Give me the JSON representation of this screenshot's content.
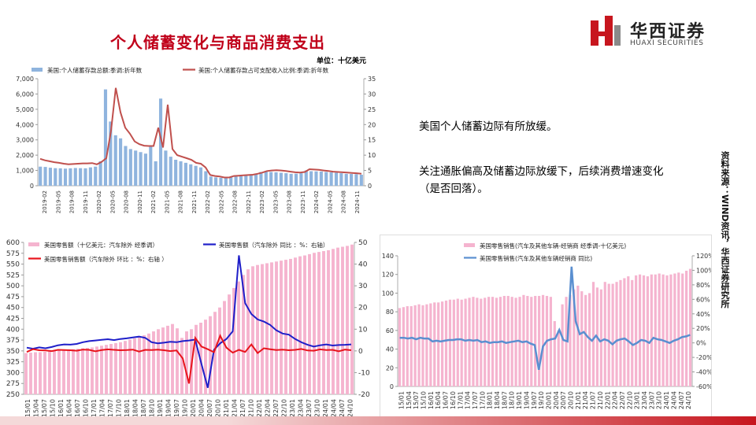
{
  "title": "个人储蓄变化与商品消费支出",
  "logo": {
    "cn": "华西证券",
    "en": "HUAXI SECURITIES",
    "mark_colors": [
      "#c7161e",
      "#8a8a8a"
    ]
  },
  "notes": [
    "美国个人储蓄边际有所放缓。",
    "关注通胀偏高及储蓄边际放缓下，后续消费增速变化（是否回落）。"
  ],
  "source": "资料来源：WIND资讯，华西证券研究所",
  "colors": {
    "accent_red": "#c0001a",
    "bar_blue": "#8fb4de",
    "line_red": "#c0504d",
    "retail_pink": "#f5b4cf",
    "retail_line_red": "#e8141c",
    "retail_line_blue": "#1f1fc9",
    "auto_line_blue": "#5a8fd0"
  },
  "chart_data": [
    {
      "type": "bar",
      "id": "savings",
      "unit": "单位：十亿美元",
      "legend": [
        "美国:个人储蓄存款总额:季调:折年数",
        "美国:个人储蓄存款占可支配收入比例:季调:折年数"
      ],
      "legend_placement": "top",
      "y_left": {
        "lim": [
          0,
          7000
        ],
        "ticks": [
          "0",
          "1,000",
          "2,000",
          "3,000",
          "4,000",
          "5,000",
          "6,000",
          "7,000"
        ]
      },
      "y_right": {
        "lim": [
          0,
          35
        ],
        "ticks": [
          "0",
          "5",
          "10",
          "15",
          "20",
          "25",
          "30",
          "35"
        ]
      },
      "x_labels": [
        "2019-02",
        "2019-05",
        "2019-08",
        "2019-11",
        "2020-02",
        "2020-05",
        "2020-08",
        "2020-11",
        "2021-02",
        "2021-05",
        "2021-08",
        "2021-11",
        "2022-02",
        "2022-05",
        "2022-08",
        "2022-11",
        "2023-02",
        "2023-05",
        "2023-08",
        "2023-11",
        "2024-02",
        "2024-05",
        "2024-08",
        "2024-11"
      ],
      "series": [
        {
          "name": "美国:个人储蓄存款总额:季调:折年数",
          "axis": "left",
          "values": [
            1250,
            1230,
            1180,
            1150,
            1140,
            1120,
            1140,
            1160,
            1150,
            1140,
            1200,
            1250,
            1600,
            6300,
            4200,
            3300,
            3100,
            2600,
            2400,
            2300,
            2200,
            2100,
            2600,
            1600,
            5700,
            2300,
            1900,
            1700,
            1600,
            1500,
            1400,
            1300,
            1200,
            950,
            600,
            550,
            520,
            500,
            580,
            600,
            620,
            700,
            750,
            800,
            900,
            950,
            900,
            880,
            850,
            820,
            780,
            790,
            820,
            1000,
            950,
            940,
            930,
            900,
            880,
            850,
            820,
            780,
            770,
            760,
            720
          ]
        },
        {
          "name": "美国:个人储蓄存款占可支配收入比例:季调:折年数",
          "axis": "right",
          "values": [
            8.8,
            8.3,
            8.0,
            7.7,
            7.5,
            7.2,
            7.0,
            7.1,
            7.2,
            7.3,
            7.3,
            7.4,
            7.0,
            7.8,
            9.0,
            18.0,
            32.0,
            24.0,
            19.0,
            17.0,
            14.5,
            13.6,
            13.1,
            13.0,
            13.0,
            19.0,
            12.5,
            26.5,
            12.0,
            10.0,
            9.5,
            9.0,
            8.5,
            7.5,
            7.2,
            6.0,
            3.5,
            3.2,
            3.0,
            2.7,
            2.7,
            3.2,
            3.3,
            3.4,
            3.5,
            3.6,
            3.9,
            4.3,
            4.8,
            5.0,
            5.1,
            5.0,
            4.8,
            4.6,
            4.4,
            4.3,
            4.5,
            5.4,
            5.3,
            5.2,
            5.0,
            4.8,
            4.6,
            4.5,
            4.4,
            4.3,
            4.2,
            4.1,
            3.9
          ]
        }
      ]
    },
    {
      "type": "bar",
      "id": "retail",
      "legend": [
        "美国零售额（十亿美元：汽车除外  经季调）",
        "美国零售额（汽车除外  同比 ：%：右轴）",
        "美国零售销售额（汽车除外  环比 ：%：右轴 ）"
      ],
      "legend_placement": "top",
      "y_left": {
        "lim": [
          250,
          600
        ],
        "ticks": [
          "250",
          "275",
          "300",
          "325",
          "350",
          "375",
          "400",
          "425",
          "450",
          "475",
          "500",
          "525",
          "550",
          "575",
          "600"
        ]
      },
      "y_right": {
        "lim": [
          -20,
          50
        ],
        "ticks": [
          "-20",
          "-10",
          "0",
          "10",
          "20",
          "30",
          "40",
          "50"
        ]
      },
      "x_labels": [
        "15/01",
        "15/04",
        "15/07",
        "15/10",
        "16/01",
        "16/04",
        "16/07",
        "16/10",
        "17/01",
        "17/04",
        "17/07",
        "17/10",
        "18/01",
        "18/04",
        "18/07",
        "18/10",
        "19/01",
        "19/04",
        "19/07",
        "19/10",
        "20/01",
        "20/04",
        "20/07",
        "20/10",
        "21/01",
        "21/04",
        "21/07",
        "21/10",
        "22/01",
        "22/04",
        "22/07",
        "22/10",
        "23/01",
        "23/04",
        "23/07",
        "23/10",
        "24/01",
        "24/04",
        "24/07",
        "24/10"
      ],
      "series": [
        {
          "name": "美国零售额（十亿美元：汽车除外  经季调）",
          "axis": "left",
          "values": [
            345,
            346,
            347,
            347,
            348,
            349,
            350,
            351,
            352,
            353,
            354,
            355,
            356,
            357,
            358,
            360,
            362,
            364,
            366,
            368,
            370,
            373,
            376,
            379,
            382,
            386,
            390,
            395,
            400,
            404,
            408,
            412,
            402,
            380,
            395,
            400,
            410,
            415,
            422,
            430,
            440,
            450,
            465,
            480,
            495,
            510,
            525,
            538,
            545,
            548,
            550,
            552,
            554,
            556,
            558,
            560,
            562,
            565,
            568,
            570,
            573,
            576,
            578,
            580,
            582,
            585,
            588,
            590,
            592,
            595
          ]
        },
        {
          "name": "美国零售额（汽车除外  同比 ：%：右轴）",
          "axis": "right",
          "values": [
            1.5,
            1.0,
            1.6,
            1.2,
            1.8,
            2.6,
            3.0,
            2.9,
            3.2,
            4.0,
            4.5,
            4.8,
            5.1,
            5.4,
            5.0,
            5.5,
            5.8,
            6.2,
            6.6,
            6.0,
            4.0,
            3.5,
            3.8,
            4.2,
            4.0,
            4.5,
            4.8,
            5.2,
            -6.0,
            -17.0,
            0.5,
            3.5,
            5.5,
            9.0,
            44.0,
            22.0,
            17.0,
            14.5,
            13.5,
            12.0,
            9.5,
            8.0,
            7.5,
            5.5,
            4.0,
            2.8,
            2.0,
            2.6,
            3.0,
            2.5,
            2.7,
            2.8,
            3.0
          ]
        },
        {
          "name": "美国零售销售额（汽车除外  环比 ：%：右轴 ）",
          "axis": "right",
          "values": [
            -0.5,
            0.8,
            0.3,
            0.2,
            -0.1,
            0.5,
            0.4,
            0.3,
            0.1,
            0.6,
            0.5,
            -0.2,
            0.4,
            0.7,
            0.5,
            0.3,
            0.4,
            0.6,
            -0.3,
            0.5,
            0.4,
            0.6,
            0.3,
            -0.1,
            0.2,
            -3.5,
            -15.0,
            6.0,
            2.0,
            0.8,
            -0.6,
            7.0,
            1.5,
            -0.8,
            0.5,
            -0.5,
            3.0,
            -1.0,
            1.2,
            0.8,
            0.4,
            0.6,
            0.3,
            0.5,
            0.9,
            0.2,
            0.1,
            0.7,
            0.4,
            0.5,
            -0.2,
            0.6,
            0.3
          ]
        }
      ]
    },
    {
      "type": "bar",
      "id": "autos",
      "legend": [
        "美国零售销售(汽车及其他车辆-经销商  经季调-十亿美元)",
        "美国零售销售(汽车及其他车辆经销商  同比)"
      ],
      "legend_placement": "top",
      "y_left": {
        "lim": [
          0,
          140
        ],
        "ticks": [
          "0",
          "20",
          "40",
          "60",
          "80",
          "100",
          "120",
          "140"
        ]
      },
      "y_right": {
        "lim": [
          -60,
          120
        ],
        "ticks": [
          "-60%",
          "-40%",
          "-20%",
          "0%",
          "20%",
          "40%",
          "60%",
          "80%",
          "100%",
          "120%"
        ]
      },
      "x_labels": [
        "15/01",
        "15/04",
        "15/07",
        "15/10",
        "16/01",
        "16/04",
        "16/07",
        "16/10",
        "17/01",
        "17/04",
        "17/07",
        "17/10",
        "18/01",
        "18/04",
        "18/07",
        "18/10",
        "19/01",
        "19/04",
        "19/07",
        "19/10",
        "20/01",
        "20/04",
        "20/07",
        "20/10",
        "21/01",
        "21/04",
        "21/07",
        "21/10",
        "22/01",
        "22/04",
        "22/07",
        "22/10",
        "23/01",
        "23/04",
        "23/07",
        "23/10",
        "24/01",
        "24/04",
        "24/07",
        "24/10"
      ],
      "series": [
        {
          "name": "美国零售销售(汽车及其他车辆-经销商  经季调-十亿美元)",
          "axis": "left",
          "values": [
            84,
            85,
            86,
            86,
            87,
            88,
            87,
            88,
            89,
            90,
            90,
            91,
            92,
            93,
            93,
            94,
            93,
            94,
            95,
            96,
            95,
            94,
            95,
            96,
            96,
            95,
            96,
            97,
            97,
            96,
            95,
            96,
            98,
            97,
            96,
            97,
            97,
            98,
            97,
            96,
            70,
            60,
            88,
            96,
            98,
            104,
            108,
            102,
            98,
            100,
            112,
            106,
            104,
            112,
            110,
            110,
            112,
            114,
            116,
            118,
            114,
            119,
            120,
            119,
            118,
            120,
            120,
            121,
            120,
            119,
            120,
            121,
            122,
            121,
            124,
            126
          ]
        },
        {
          "name": "美国零售销售(汽车及其他车辆经销商  同比)",
          "axis": "right",
          "values": [
            7,
            7,
            6,
            7,
            5,
            7,
            6,
            6,
            2,
            3,
            2,
            3,
            4,
            4,
            5,
            5,
            3,
            4,
            3,
            4,
            1,
            2,
            0,
            1,
            1,
            2,
            0,
            1,
            2,
            3,
            1,
            2,
            -1,
            -3,
            -37,
            -5,
            3,
            5,
            6,
            18,
            4,
            2,
            105,
            30,
            12,
            15,
            8,
            3,
            10,
            2,
            5,
            3,
            -2,
            3,
            5,
            6,
            2,
            -3,
            0,
            4,
            3,
            0,
            7,
            5,
            4,
            2,
            0,
            3,
            5,
            8,
            9,
            11
          ]
        }
      ]
    }
  ]
}
